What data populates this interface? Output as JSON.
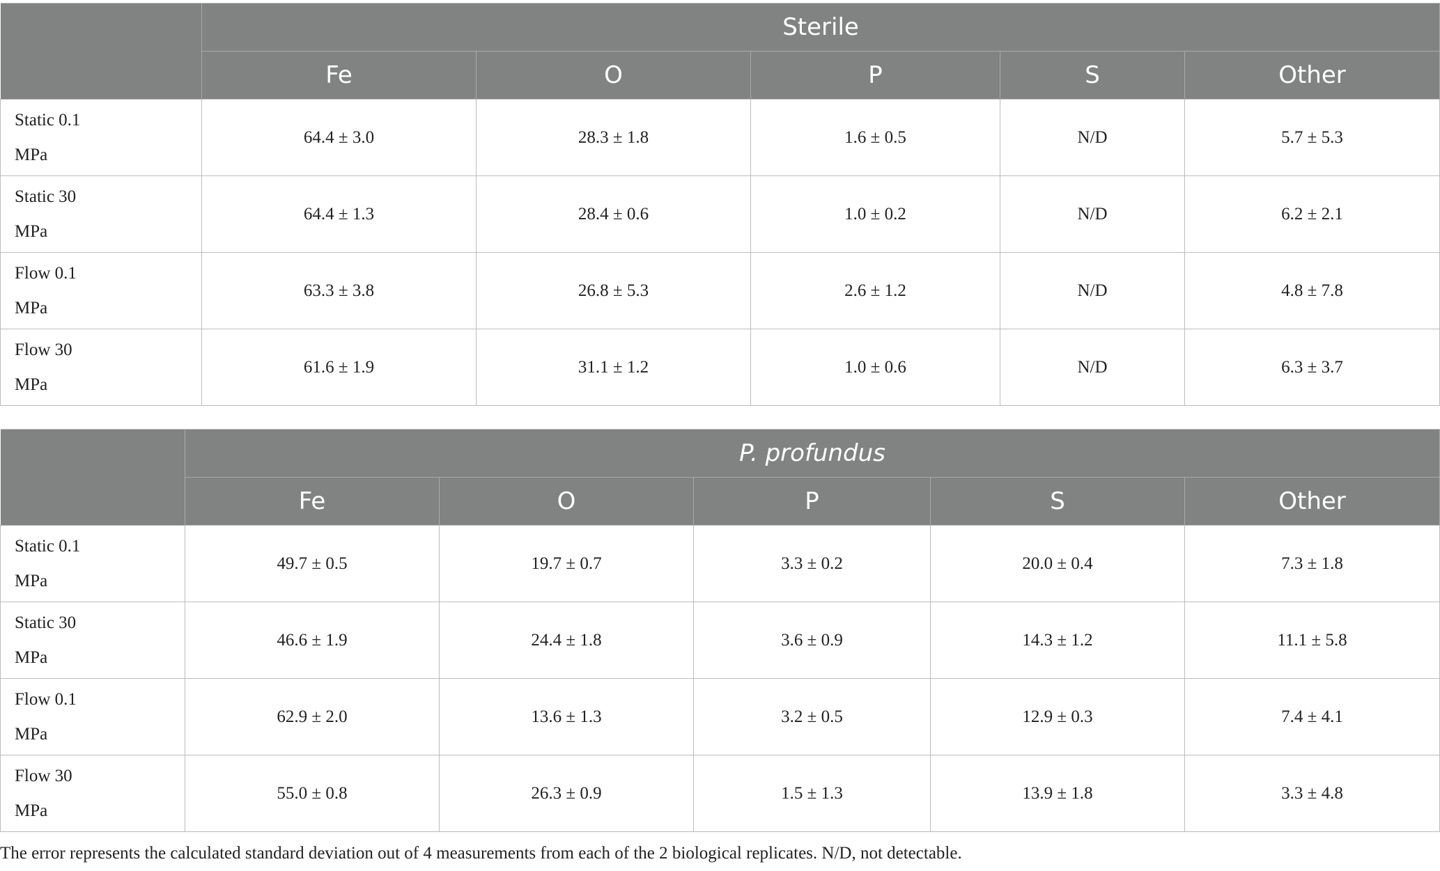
{
  "tables": [
    {
      "group": "Sterile",
      "columns": [
        "Fe",
        "O",
        "P",
        "S",
        "Other"
      ],
      "rows": [
        {
          "label": [
            "Static 0.1",
            "MPa"
          ],
          "values": [
            "64.4 ± 3.0",
            "28.3 ± 1.8",
            "1.6 ± 0.5",
            "N/D",
            "5.7 ± 5.3"
          ]
        },
        {
          "label": [
            "Static 30",
            "MPa"
          ],
          "values": [
            "64.4 ± 1.3",
            "28.4 ± 0.6",
            "1.0 ± 0.2",
            "N/D",
            "6.2 ± 2.1"
          ]
        },
        {
          "label": [
            "Flow 0.1",
            "MPa"
          ],
          "values": [
            "63.3 ± 3.8",
            "26.8 ± 5.3",
            "2.6 ± 1.2",
            "N/D",
            "4.8 ± 7.8"
          ]
        },
        {
          "label": [
            "Flow 30",
            "MPa"
          ],
          "values": [
            "61.6 ± 1.9",
            "31.1 ± 1.2",
            "1.0 ± 0.6",
            "N/D",
            "6.3 ± 3.7"
          ]
        }
      ]
    },
    {
      "group": "P. profundus",
      "columns": [
        "Fe",
        "O",
        "P",
        "S",
        "Other"
      ],
      "rows": [
        {
          "label": [
            "Static 0.1",
            "MPa"
          ],
          "values": [
            "49.7 ± 0.5",
            "19.7 ± 0.7",
            "3.3 ± 0.2",
            "20.0 ± 0.4",
            "7.3 ± 1.8"
          ]
        },
        {
          "label": [
            "Static 30",
            "MPa"
          ],
          "values": [
            "46.6 ± 1.9",
            "24.4 ± 1.8",
            "3.6 ± 0.9",
            "14.3 ± 1.2",
            "11.1 ± 5.8"
          ]
        },
        {
          "label": [
            "Flow 0.1",
            "MPa"
          ],
          "values": [
            "62.9 ± 2.0",
            "13.6 ± 1.3",
            "3.2 ± 0.5",
            "12.9 ± 0.3",
            "7.4 ± 4.1"
          ]
        },
        {
          "label": [
            "Flow 30",
            "MPa"
          ],
          "values": [
            "55.0 ± 0.8",
            "26.3 ± 0.9",
            "1.5 ± 1.3",
            "13.9 ± 1.8",
            "3.3 ± 4.8"
          ]
        }
      ]
    }
  ],
  "footnote": "The error represents the calculated standard deviation out of 4 measurements from each of the 2 biological replicates. N/D, not detectable.",
  "colors": {
    "header_bg": "#808381",
    "header_text": "#ffffff",
    "border": "#bcbcbc"
  }
}
